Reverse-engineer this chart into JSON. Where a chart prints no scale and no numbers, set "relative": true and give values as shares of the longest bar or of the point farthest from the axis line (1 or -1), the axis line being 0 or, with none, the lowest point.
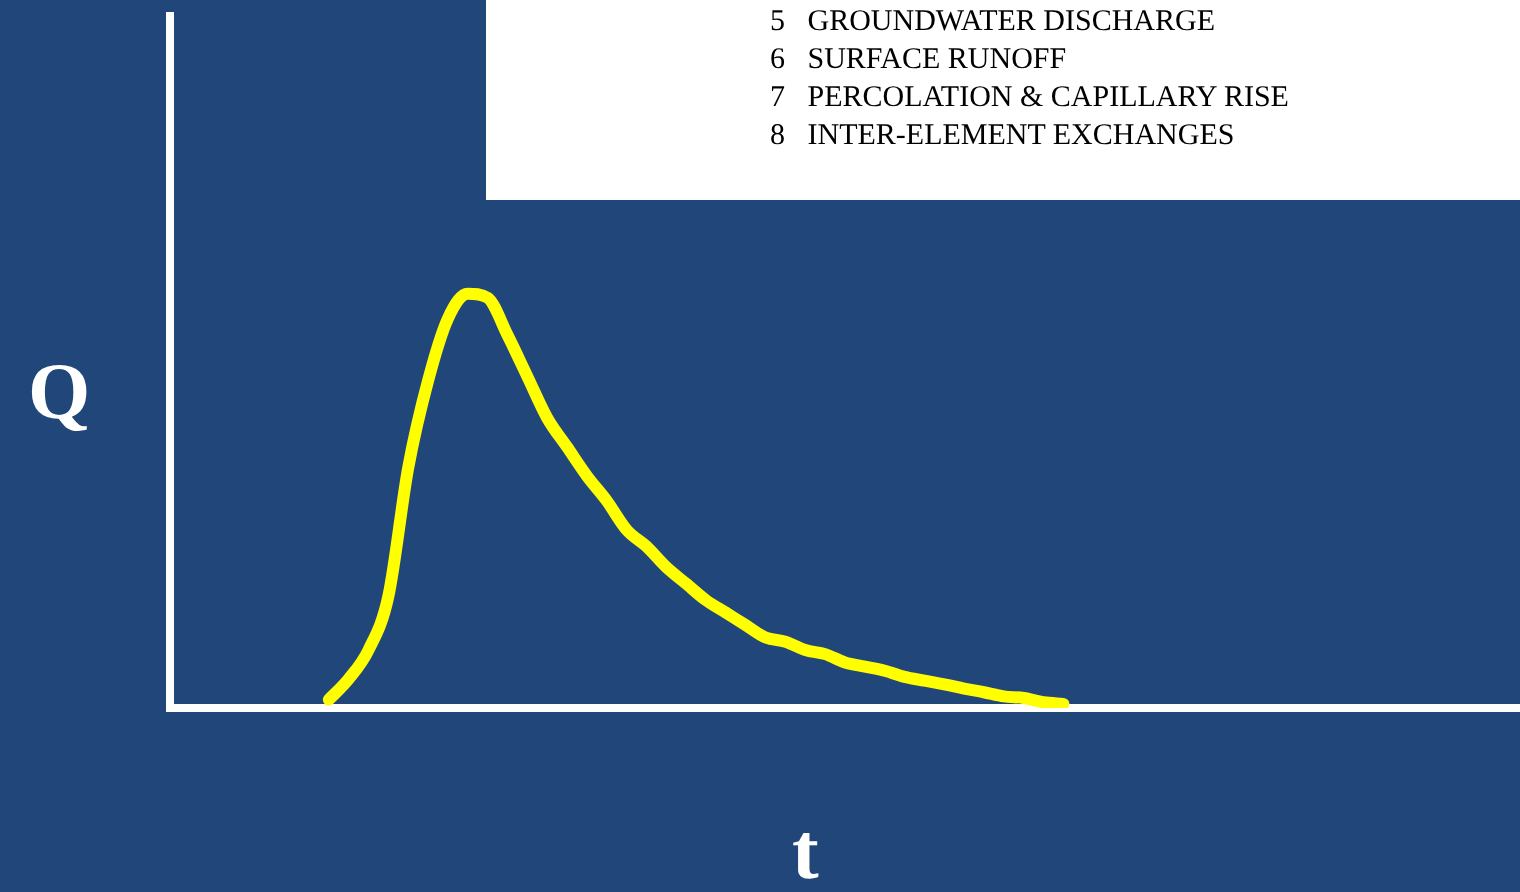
{
  "chart_data": {
    "type": "line",
    "relative": true,
    "xlabel": "t",
    "ylabel": "Q",
    "annotations": [
      "5   GROUNDWATER DISCHARGE",
      "6   SURFACE RUNOFF",
      "7   PERCOLATION & CAPILLARY RISE",
      "8   INTER-ELEMENT EXCHANGES"
    ],
    "categories": [
      null,
      null,
      null,
      null,
      null,
      null,
      null,
      null,
      null,
      null,
      null,
      null,
      null,
      null,
      null,
      null,
      null,
      null,
      null,
      null,
      null,
      null,
      null,
      null,
      null,
      null,
      null,
      null,
      null,
      null,
      null,
      null,
      null,
      null,
      null,
      null,
      null,
      null,
      null,
      null,
      null,
      null,
      null,
      null,
      null,
      null,
      null,
      null,
      null,
      null,
      null,
      null,
      null,
      null,
      null,
      null,
      null,
      null,
      null,
      null,
      null,
      null,
      null,
      null,
      null,
      null,
      null,
      null,
      null
    ],
    "series": [
      {
        "color": "#ffff00",
        "values": [
          null,
          null,
          null,
          null,
          null,
          null,
          null,
          null,
          0.02,
          0.07,
          0.14,
          0.27,
          0.58,
          0.79,
          0.94,
          1,
          0.99,
          0.9,
          0.8,
          0.7,
          0.63,
          0.56,
          0.5,
          0.43,
          0.39,
          0.34,
          0.3,
          0.26,
          0.23,
          0.2,
          0.17,
          0.16,
          0.14,
          0.13,
          0.11,
          0.1,
          0.09,
          0.075,
          0.066,
          0.057,
          0.047,
          0.038,
          0.028,
          0.024,
          0.014,
          0.01,
          null,
          null,
          null,
          null,
          null,
          null,
          null,
          null,
          null,
          null,
          null,
          null,
          null,
          null,
          null,
          null,
          null,
          null,
          null,
          null,
          null,
          null,
          null
        ]
      }
    ],
    "marker": "none"
  }
}
